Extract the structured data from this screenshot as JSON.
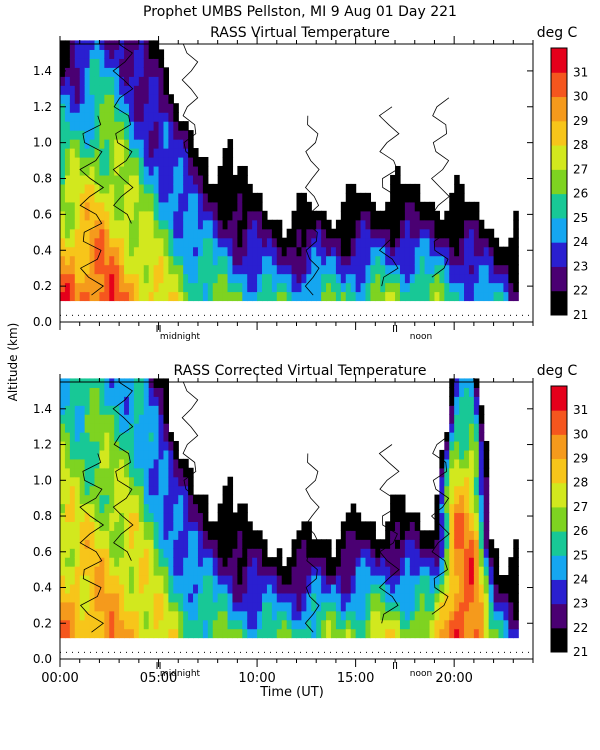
{
  "header": {
    "line1": "Prophet  UMBS Pellston, MI   9 Aug 01 Day 221"
  },
  "shared": {
    "ylabel": "Altitude (km)",
    "xlabel": "Time (UT)",
    "x_tick_labels": [
      "00:00",
      "05:00",
      "10:00",
      "15:00",
      "20:00"
    ],
    "midnight_label": "midnight",
    "noon_label": "noon"
  },
  "chart_data": [
    {
      "type": "heatmap",
      "title": "RASS Virtual Temperature",
      "colorbar_label": "deg C",
      "xlabel": "",
      "ylabel": "Altitude (km)",
      "xlim": [
        0,
        24
      ],
      "ylim": [
        0,
        1.55
      ],
      "y_ticks": [
        0.0,
        0.2,
        0.4,
        0.6,
        0.8,
        1.0,
        1.2,
        1.4
      ],
      "colorbar_ticks": [
        21,
        22,
        23,
        24,
        25,
        26,
        27,
        28,
        29,
        30,
        31
      ],
      "colorbar_colors": [
        "#000000",
        "#4a0072",
        "#2a1fd0",
        "#15a6f0",
        "#18c896",
        "#7ed321",
        "#d2e81e",
        "#f7c51a",
        "#f59a1c",
        "#f5561e",
        "#e5001b"
      ],
      "data_altitude_range_km": [
        0.12,
        1.55
      ],
      "x_hours": [
        0,
        1,
        2,
        3,
        4,
        5,
        6,
        7,
        8,
        9,
        10,
        11,
        12,
        13,
        14,
        15,
        16,
        17,
        18,
        19,
        20,
        21,
        22,
        23
      ],
      "surface_temp_degC": [
        30.5,
        30.5,
        30.8,
        30,
        29,
        28,
        27,
        26.2,
        26,
        25.8,
        25.5,
        25.3,
        25.4,
        25.6,
        25.7,
        25.9,
        26.2,
        26.6,
        26.4,
        26.2,
        25.6,
        25,
        24.4,
        23.8
      ],
      "lapse_degC_per_km": [
        -6,
        -5.5,
        -5,
        -4.5,
        -5,
        -5,
        -5,
        -6,
        -7,
        -8,
        -9,
        -10,
        -10,
        -10,
        -10,
        -10,
        -10,
        -10,
        -10,
        -10,
        -9,
        -9,
        -9,
        -9
      ]
    },
    {
      "type": "heatmap",
      "title": "RASS Corrected Virtual Temperature",
      "colorbar_label": "deg C",
      "xlabel": "Time (UT)",
      "ylabel": "Altitude (km)",
      "xlim": [
        0,
        24
      ],
      "ylim": [
        0,
        1.55
      ],
      "y_ticks": [
        0.0,
        0.2,
        0.4,
        0.6,
        0.8,
        1.0,
        1.2,
        1.4
      ],
      "colorbar_ticks": [
        21,
        22,
        23,
        24,
        25,
        26,
        27,
        28,
        29,
        30,
        31
      ],
      "colorbar_colors": [
        "#000000",
        "#4a0072",
        "#2a1fd0",
        "#15a6f0",
        "#18c896",
        "#7ed321",
        "#d2e81e",
        "#f7c51a",
        "#f59a1c",
        "#f5561e",
        "#e5001b"
      ],
      "data_altitude_range_km": [
        0.12,
        1.55
      ],
      "x_hours": [
        0,
        1,
        2,
        3,
        4,
        5,
        6,
        7,
        8,
        9,
        10,
        11,
        12,
        13,
        14,
        15,
        16,
        17,
        18,
        19,
        20,
        21,
        22,
        23
      ],
      "surface_temp_degC": [
        29.6,
        29.3,
        29.4,
        29.2,
        28.8,
        27.8,
        26.8,
        26.2,
        26,
        25.8,
        25.6,
        25.8,
        26,
        26.3,
        26.6,
        27,
        27.4,
        27.6,
        27.4,
        27.2,
        31,
        31,
        25.5,
        24.2
      ],
      "lapse_degC_per_km": [
        -3,
        -3,
        -3,
        -3,
        -3,
        -4,
        -5,
        -6,
        -7,
        -8,
        -9,
        -10,
        -10,
        -10,
        -10,
        -10,
        -10,
        -10,
        -10,
        -10,
        -3,
        -3,
        -9,
        -9
      ]
    }
  ]
}
